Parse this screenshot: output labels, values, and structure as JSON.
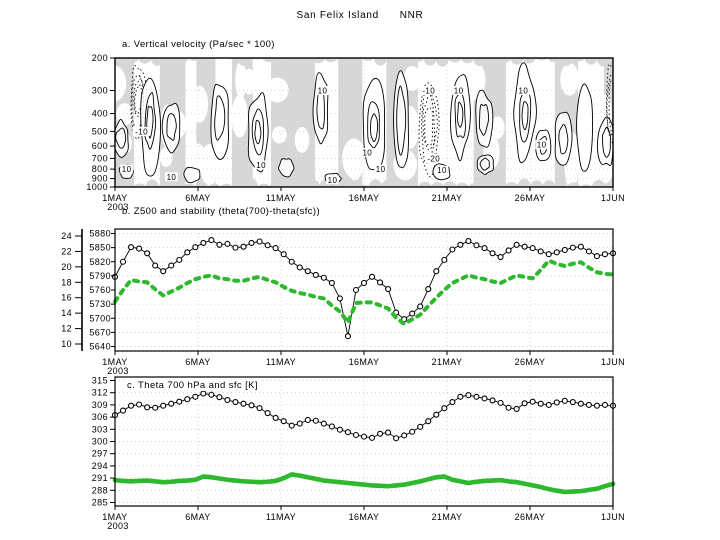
{
  "figure_title": "San Felix Island      NNR",
  "colors": {
    "green": "#2eb82e",
    "shade": "#d7d7d7",
    "grid": "#c9c9c9",
    "ink": "#000000"
  },
  "x_axis": {
    "tick_labels": [
      "1MAY",
      "6MAY",
      "11MAY",
      "16MAY",
      "21MAY",
      "26MAY",
      "1JUN"
    ],
    "tick_days": [
      1,
      6,
      11,
      16,
      21,
      26,
      31
    ],
    "year_label": "2003"
  },
  "chart_data": [
    {
      "id": "a",
      "type": "contour",
      "title": "a. Vertical velocity (Pa/sec * 100)",
      "y_ticks": [
        200,
        300,
        400,
        500,
        600,
        700,
        800,
        900,
        1000
      ],
      "y_scale": "log-pressure",
      "levels_labeled": [
        10,
        -10,
        -20
      ],
      "shading": "gray patches between contours",
      "contour_labels": [
        {
          "v": "10",
          "d": 1.7,
          "p": 800
        },
        {
          "v": "-10",
          "d": 2.6,
          "p": 500
        },
        {
          "v": "10",
          "d": 4.4,
          "p": 880
        },
        {
          "v": "10",
          "d": 9.8,
          "p": 760
        },
        {
          "v": "10",
          "d": 13.5,
          "p": 300
        },
        {
          "v": "10",
          "d": 14.1,
          "p": 915
        },
        {
          "v": "10",
          "d": 16.2,
          "p": 650
        },
        {
          "v": "10",
          "d": 17.0,
          "p": 800
        },
        {
          "v": "-10",
          "d": 19.9,
          "p": 300
        },
        {
          "v": "-20",
          "d": 20.2,
          "p": 700
        },
        {
          "v": "10",
          "d": 20.7,
          "p": 810
        },
        {
          "v": "10",
          "d": 21.7,
          "p": 300
        },
        {
          "v": "10",
          "d": 25.6,
          "p": 300
        },
        {
          "v": "10",
          "d": 26.7,
          "p": 590
        }
      ],
      "cells": [
        {
          "d": 1.35,
          "p1": 430,
          "p2": 700,
          "s": "solid",
          "n": 1,
          "w": 0.5
        },
        {
          "d": 1.7,
          "p1": 760,
          "p2": 900,
          "s": "solid",
          "n": 0,
          "w": 0.45
        },
        {
          "d": 2.4,
          "p1": 215,
          "p2": 520,
          "s": "dotted",
          "n": 2,
          "w": 0.5
        },
        {
          "d": 3.1,
          "p1": 225,
          "p2": 870,
          "s": "solid",
          "n": 2,
          "w": 0.6
        },
        {
          "d": 4.4,
          "p1": 350,
          "p2": 650,
          "s": "solid",
          "n": 1,
          "w": 0.5
        },
        {
          "d": 5.6,
          "p1": 770,
          "p2": 950,
          "s": "solid",
          "n": 0,
          "w": 0.5
        },
        {
          "d": 7.3,
          "p1": 260,
          "p2": 710,
          "s": "solid",
          "n": 1,
          "w": 0.55
        },
        {
          "d": 9.6,
          "p1": 300,
          "p2": 860,
          "s": "solid",
          "n": 2,
          "w": 0.6
        },
        {
          "d": 11.3,
          "p1": 700,
          "p2": 900,
          "s": "solid",
          "n": 0,
          "w": 0.45
        },
        {
          "d": 13.4,
          "p1": 235,
          "p2": 620,
          "s": "solid",
          "n": 1,
          "w": 0.45
        },
        {
          "d": 14.1,
          "p1": 840,
          "p2": 960,
          "s": "solid",
          "n": 0,
          "w": 0.5
        },
        {
          "d": 16.6,
          "p1": 270,
          "p2": 820,
          "s": "solid",
          "n": 2,
          "w": 0.65
        },
        {
          "d": 18.2,
          "p1": 215,
          "p2": 900,
          "s": "solid",
          "n": 1,
          "w": 0.5
        },
        {
          "d": 19.9,
          "p1": 250,
          "p2": 860,
          "s": "dotted",
          "n": 2,
          "w": 0.6
        },
        {
          "d": 20.7,
          "p1": 740,
          "p2": 920,
          "s": "solid",
          "n": 0,
          "w": 0.5
        },
        {
          "d": 21.8,
          "p1": 235,
          "p2": 700,
          "s": "solid",
          "n": 2,
          "w": 0.6
        },
        {
          "d": 23.2,
          "p1": 300,
          "p2": 620,
          "s": "solid",
          "n": 1,
          "w": 0.5
        },
        {
          "d": 23.3,
          "p1": 660,
          "p2": 860,
          "s": "solid",
          "n": 1,
          "w": 0.5
        },
        {
          "d": 25.7,
          "p1": 215,
          "p2": 760,
          "s": "solid",
          "n": 2,
          "w": 0.65
        },
        {
          "d": 26.8,
          "p1": 480,
          "p2": 740,
          "s": "solid",
          "n": 1,
          "w": 0.45
        },
        {
          "d": 28.0,
          "p1": 380,
          "p2": 800,
          "s": "solid",
          "n": 1,
          "w": 0.5
        },
        {
          "d": 29.3,
          "p1": 260,
          "p2": 850,
          "s": "solid",
          "n": 0,
          "w": 0.45
        },
        {
          "d": 30.6,
          "p1": 420,
          "p2": 780,
          "s": "solid",
          "n": 1,
          "w": 0.5
        },
        {
          "d": 30.95,
          "p1": 210,
          "p2": 620,
          "s": "dotted",
          "n": 1,
          "w": 0.35
        }
      ],
      "shaded_bands": [
        [
          0.95,
          2.15
        ],
        [
          3.7,
          5.25
        ],
        [
          5.9,
          7.05
        ],
        [
          8.05,
          9.3
        ],
        [
          10.4,
          13.05
        ],
        [
          14.45,
          15.9
        ],
        [
          17.35,
          19.25
        ],
        [
          22.6,
          24.55
        ],
        [
          27.5,
          28.9
        ],
        [
          30.45,
          31.0
        ]
      ]
    },
    {
      "id": "b",
      "type": "line",
      "title": "b. Z500 and stability (theta(700)-theta(sfc))",
      "left_outer_ticks": [
        24,
        22,
        20,
        18,
        16,
        14,
        12,
        10
      ],
      "left_inner_ticks": [
        5880,
        5850,
        5820,
        5790,
        5760,
        5730,
        5700,
        5670,
        5640
      ],
      "series": [
        {
          "name": "Z500",
          "marker": "open-circle",
          "color": "#000000",
          "values": [
            5788,
            5820,
            5851,
            5848,
            5838,
            5812,
            5800,
            5812,
            5824,
            5840,
            5851,
            5860,
            5866,
            5856,
            5858,
            5850,
            5852,
            5860,
            5863,
            5855,
            5849,
            5836,
            5820,
            5808,
            5800,
            5792,
            5786,
            5775,
            5742,
            5662,
            5760,
            5775,
            5788,
            5776,
            5762,
            5712,
            5698,
            5710,
            5725,
            5762,
            5800,
            5824,
            5846,
            5856,
            5864,
            5855,
            5849,
            5838,
            5830,
            5844,
            5856,
            5852,
            5849,
            5842,
            5836,
            5840,
            5845,
            5850,
            5852,
            5842,
            5832,
            5836,
            5838
          ]
        },
        {
          "name": "stability (theta(700)-theta(sfc))",
          "marker": "thick-green-dash",
          "color": "#2eb82e",
          "values": [
            15.5,
            17.0,
            18.3,
            18.1,
            18.0,
            17.1,
            16.3,
            16.8,
            17.3,
            17.9,
            18.4,
            18.7,
            18.9,
            18.5,
            18.4,
            18.2,
            18.2,
            18.5,
            18.7,
            18.3,
            18.0,
            17.4,
            16.9,
            16.6,
            16.4,
            16.1,
            15.9,
            15.0,
            14.2,
            12.8,
            15.3,
            15.4,
            15.4,
            15.0,
            14.6,
            13.4,
            12.6,
            13.2,
            13.8,
            14.9,
            16.0,
            17.0,
            17.9,
            18.4,
            18.9,
            18.6,
            18.4,
            18.1,
            17.9,
            18.4,
            18.9,
            18.7,
            18.5,
            19.6,
            20.8,
            20.4,
            20.1,
            20.4,
            20.6,
            19.9,
            19.3,
            19.1,
            19.0
          ]
        }
      ]
    },
    {
      "id": "c",
      "type": "line",
      "title": "c. Theta 700 hPa and sfc [K]",
      "y_ticks": [
        315,
        312,
        309,
        306,
        303,
        300,
        297,
        294,
        291,
        288,
        285
      ],
      "series": [
        {
          "name": "theta 700 hPa",
          "marker": "open-circle",
          "color": "#000000",
          "values": [
            306.5,
            307.6,
            308.8,
            309.1,
            308.4,
            308.3,
            308.8,
            309.3,
            309.8,
            310.4,
            311.0,
            311.8,
            311.5,
            310.9,
            310.2,
            309.7,
            309.3,
            308.9,
            308.2,
            307.0,
            305.8,
            305.0,
            303.9,
            304.4,
            305.3,
            305.1,
            304.4,
            303.7,
            302.9,
            302.3,
            301.6,
            301.2,
            300.9,
            301.9,
            302.2,
            300.8,
            301.5,
            302.4,
            303.6,
            305.0,
            306.6,
            308.2,
            309.7,
            311.0,
            311.4,
            311.0,
            310.6,
            310.1,
            309.5,
            308.3,
            308.0,
            309.4,
            309.8,
            309.3,
            309.0,
            309.6,
            310.0,
            309.7,
            309.3,
            309.0,
            308.8,
            309.0,
            308.8
          ]
        },
        {
          "name": "theta sfc",
          "marker": "thick-green-solid",
          "color": "#2eb82e",
          "values": [
            290.5,
            290.3,
            290.2,
            290.3,
            290.4,
            290.2,
            290.0,
            290.1,
            290.3,
            290.4,
            290.6,
            291.4,
            291.2,
            290.9,
            290.6,
            290.4,
            290.2,
            290.1,
            290.0,
            290.1,
            290.3,
            291.0,
            291.9,
            291.6,
            291.2,
            290.8,
            290.4,
            290.2,
            290.0,
            289.8,
            289.6,
            289.4,
            289.2,
            289.1,
            289.0,
            289.2,
            289.4,
            289.8,
            290.2,
            290.7,
            291.2,
            291.4,
            290.6,
            290.2,
            289.8,
            290.1,
            290.3,
            290.4,
            290.5,
            290.2,
            290.0,
            289.6,
            289.2,
            288.8,
            288.3,
            287.9,
            287.6,
            287.7,
            287.8,
            288.1,
            288.4,
            289.0,
            289.6
          ]
        }
      ]
    }
  ]
}
